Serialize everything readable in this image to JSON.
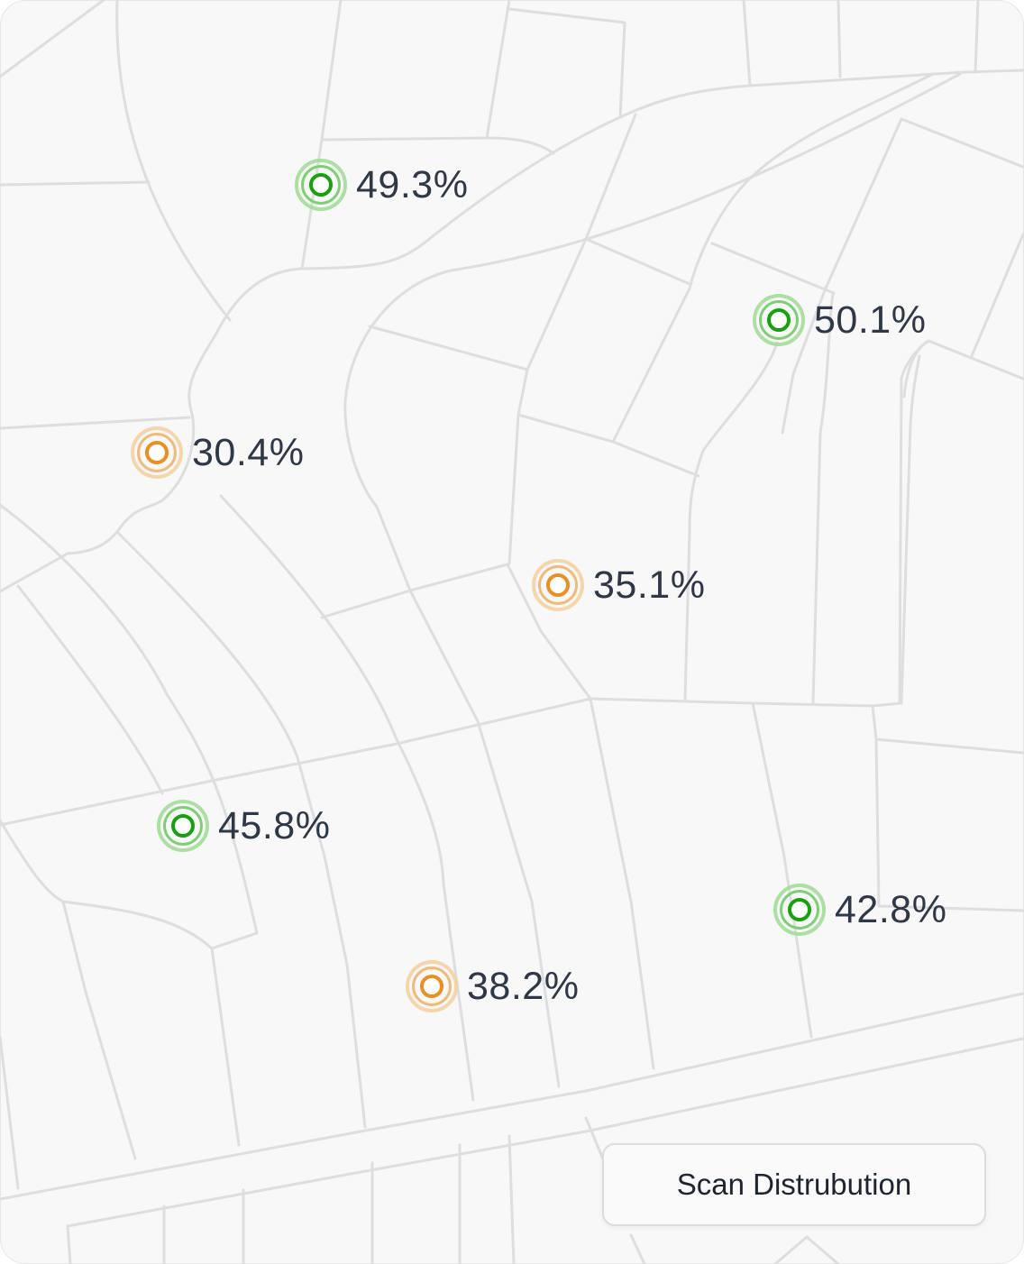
{
  "map": {
    "markers": [
      {
        "label": "49.3%",
        "status": "high"
      },
      {
        "label": "50.1%",
        "status": "high"
      },
      {
        "label": "30.4%",
        "status": "low"
      },
      {
        "label": "35.1%",
        "status": "low"
      },
      {
        "label": "45.8%",
        "status": "high"
      },
      {
        "label": "42.8%",
        "status": "high"
      },
      {
        "label": "38.2%",
        "status": "low"
      }
    ],
    "colors": {
      "high": {
        "outer": "#9ddc93",
        "mid": "#7ccf72",
        "inner": "#17a10f"
      },
      "low": {
        "outer": "#f6cf9c",
        "mid": "#f2b978",
        "inner": "#ea8f23"
      },
      "road": "#dedee0",
      "background": "#f8f8f9"
    }
  },
  "button": {
    "label": "Scan Distrubution"
  }
}
